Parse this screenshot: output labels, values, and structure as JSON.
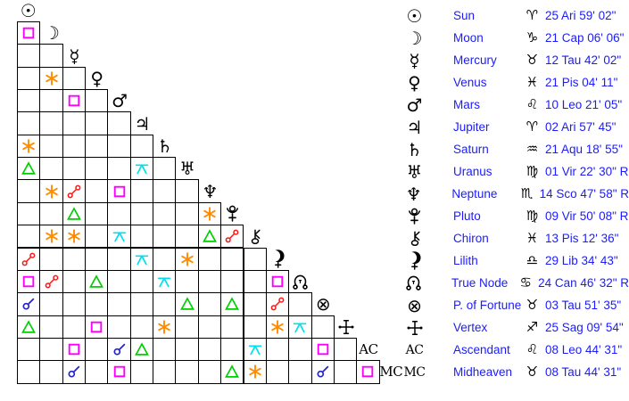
{
  "page": {
    "kind": "astrology-aspectarian",
    "background": "#ffffff"
  },
  "colors": {
    "legend_text": "#1b1bff",
    "glyph": "#000000",
    "grid_line": "#000000"
  },
  "aspect_types": {
    "conjunction": {
      "label": "Conjunction",
      "color": "#2323cc"
    },
    "sextile": {
      "label": "Sextile",
      "color": "#ff8c00"
    },
    "square": {
      "label": "Square",
      "color": "#ff00ff"
    },
    "trine": {
      "label": "Trine",
      "color": "#00ce00"
    },
    "opposition": {
      "label": "Opposition",
      "color": "#ff1414"
    },
    "quincunx": {
      "label": "Quincunx",
      "color": "#00dff0"
    }
  },
  "grid": {
    "header": {
      "body": "Sun",
      "glyph": "sun"
    },
    "rows": [
      {
        "body": "Moon",
        "glyph": "moon",
        "cells": 1,
        "aspects": {
          "1": "square"
        }
      },
      {
        "body": "Mercury",
        "glyph": "mercury",
        "cells": 2,
        "aspects": {}
      },
      {
        "body": "Venus",
        "glyph": "venus",
        "cells": 3,
        "aspects": {
          "2": "sextile"
        }
      },
      {
        "body": "Mars",
        "glyph": "mars",
        "cells": 4,
        "aspects": {
          "3": "square"
        }
      },
      {
        "body": "Jupiter",
        "glyph": "jupiter",
        "cells": 5,
        "aspects": {}
      },
      {
        "body": "Saturn",
        "glyph": "saturn",
        "cells": 6,
        "aspects": {
          "1": "sextile"
        }
      },
      {
        "body": "Uranus",
        "glyph": "uranus",
        "cells": 7,
        "aspects": {
          "1": "trine",
          "6": "quincunx"
        }
      },
      {
        "body": "Neptune",
        "glyph": "neptune",
        "cells": 8,
        "aspects": {
          "2": "sextile",
          "3": "opposition",
          "5": "square"
        }
      },
      {
        "body": "Pluto",
        "glyph": "pluto",
        "cells": 9,
        "aspects": {
          "3": "trine",
          "9": "sextile"
        }
      },
      {
        "body": "Chiron",
        "glyph": "chiron",
        "cells": 10,
        "aspects": {
          "2": "sextile",
          "3": "sextile",
          "5": "quincunx",
          "9": "trine",
          "10": "opposition"
        }
      },
      {
        "body": "Lilith",
        "glyph": "lilith",
        "cells": 11,
        "aspects": {
          "1": "opposition",
          "6": "quincunx",
          "8": "sextile"
        }
      },
      {
        "body": "True Node",
        "glyph": "truenode",
        "cells": 12,
        "aspects": {
          "1": "square",
          "2": "opposition",
          "4": "trine",
          "7": "quincunx",
          "12": "square"
        }
      },
      {
        "body": "P. of Fortune",
        "glyph": "fortune",
        "cells": 13,
        "aspects": {
          "1": "conjunction",
          "8": "trine",
          "10": "trine",
          "12": "opposition"
        }
      },
      {
        "body": "Vertex",
        "glyph": "vertex",
        "cells": 14,
        "aspects": {
          "1": "trine",
          "4": "square",
          "7": "sextile",
          "12": "sextile",
          "13": "quincunx"
        }
      },
      {
        "body": "Ascendant",
        "glyph": "ac",
        "cells": 15,
        "aspects": {
          "3": "square",
          "5": "conjunction",
          "6": "trine",
          "11": "quincunx",
          "14": "square"
        }
      },
      {
        "body": "Midheaven",
        "glyph": "mc",
        "cells": 16,
        "aspects": {
          "3": "conjunction",
          "5": "square",
          "10": "trine",
          "11": "sextile",
          "14": "conjunction",
          "16": "square"
        }
      }
    ]
  },
  "legend": {
    "rows": [
      {
        "glyph": "sun",
        "name": "Sun",
        "sign_glyph": "aries",
        "position": "25 Ari 59' 02\""
      },
      {
        "glyph": "moon",
        "name": "Moon",
        "sign_glyph": "capricorn",
        "position": "21 Cap 06' 06\""
      },
      {
        "glyph": "mercury",
        "name": "Mercury",
        "sign_glyph": "taurus",
        "position": "12 Tau 42' 02\""
      },
      {
        "glyph": "venus",
        "name": "Venus",
        "sign_glyph": "pisces",
        "position": "21 Pis 04' 11\""
      },
      {
        "glyph": "mars",
        "name": "Mars",
        "sign_glyph": "leo",
        "position": "10 Leo 21' 05\""
      },
      {
        "glyph": "jupiter",
        "name": "Jupiter",
        "sign_glyph": "aries",
        "position": "02 Ari 57' 45\""
      },
      {
        "glyph": "saturn",
        "name": "Saturn",
        "sign_glyph": "aquarius",
        "position": "21 Aqu 18' 55\""
      },
      {
        "glyph": "uranus",
        "name": "Uranus",
        "sign_glyph": "virgo",
        "position": "01 Vir 22' 30\" R"
      },
      {
        "glyph": "neptune",
        "name": "Neptune",
        "sign_glyph": "scorpio",
        "position": "14 Sco 47' 58\" R"
      },
      {
        "glyph": "pluto",
        "name": "Pluto",
        "sign_glyph": "virgo",
        "position": "09 Vir 50' 08\" R"
      },
      {
        "glyph": "chiron",
        "name": "Chiron",
        "sign_glyph": "pisces",
        "position": "13 Pis 12' 36\""
      },
      {
        "glyph": "lilith",
        "name": "Lilith",
        "sign_glyph": "libra",
        "position": "29 Lib 34' 43\""
      },
      {
        "glyph": "truenode",
        "name": "True Node",
        "sign_glyph": "cancer",
        "position": "24 Can 46' 32\" R"
      },
      {
        "glyph": "fortune",
        "name": "P. of Fortune",
        "sign_glyph": "taurus",
        "position": "03 Tau 51' 35\""
      },
      {
        "glyph": "vertex",
        "name": "Vertex",
        "sign_glyph": "sagittarius",
        "position": "25 Sag 09' 54\""
      },
      {
        "glyph": "ac",
        "name": "Ascendant",
        "sign_glyph": "leo",
        "position": "08 Leo 44' 31\""
      },
      {
        "glyph": "mc",
        "name": "Midheaven",
        "sign_glyph": "taurus",
        "position": "08 Tau 44' 31\""
      }
    ]
  }
}
